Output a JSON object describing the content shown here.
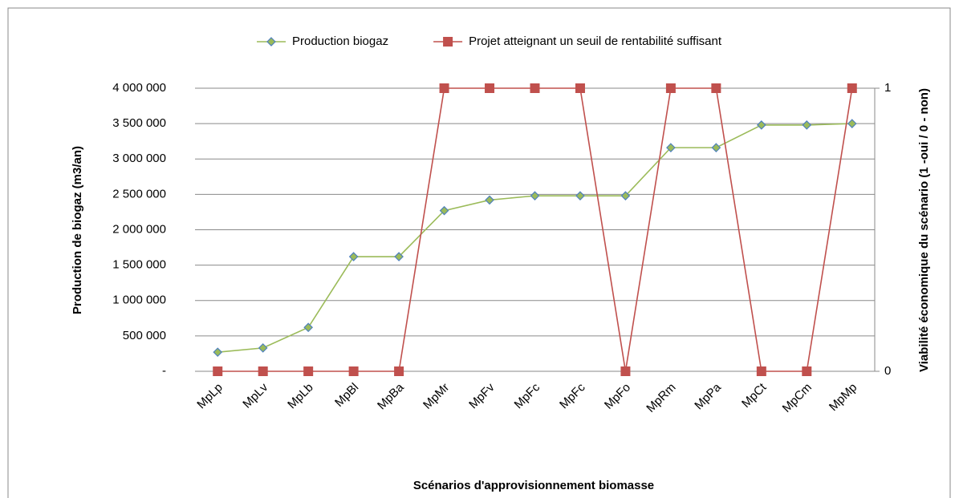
{
  "chart_data": {
    "type": "line",
    "categories": [
      "MpLp",
      "MpLv",
      "MpLb",
      "MpBl",
      "MpBa",
      "MpMr",
      "MpFv",
      "MpFc",
      "MpFc",
      "MpFo",
      "MpRm",
      "MpPa",
      "MpCt",
      "MpCm",
      "MpMp"
    ],
    "series": [
      {
        "name": "Production biogaz",
        "color": "#9bbb59",
        "marker_edge": "#4f81bd",
        "marker": "diamond",
        "values": [
          270000,
          330000,
          620000,
          1620000,
          1620000,
          2270000,
          2420000,
          2480000,
          2480000,
          2480000,
          3160000,
          3160000,
          3480000,
          3480000,
          3500000
        ]
      },
      {
        "name": "Projet atteignant  un seuil de rentabilité suffisant",
        "color": "#c0504d",
        "marker": "square",
        "axis": "y2",
        "values": [
          0,
          0,
          0,
          0,
          0,
          1,
          1,
          1,
          1,
          0,
          1,
          1,
          0,
          0,
          1
        ]
      }
    ],
    "ylim": [
      0,
      4000000
    ],
    "yticks": [
      {
        "value": 0,
        "label": "-"
      },
      {
        "value": 500000,
        "label": "500 000"
      },
      {
        "value": 1000000,
        "label": "1 000 000"
      },
      {
        "value": 1500000,
        "label": "1 500 000"
      },
      {
        "value": 2000000,
        "label": "2 000 000"
      },
      {
        "value": 2500000,
        "label": "2 500 000"
      },
      {
        "value": 3000000,
        "label": "3 000 000"
      },
      {
        "value": 3500000,
        "label": "3 500 000"
      },
      {
        "value": 4000000,
        "label": "4 000 000"
      }
    ],
    "y2lim": [
      0,
      1
    ],
    "y2ticks": [
      0,
      1
    ],
    "y_label": "Production de biogaz  (m3/an)",
    "y2_label": "Viabilité économique du scénario  (1 -oui / 0 - non)",
    "x_label": "Scénarios d'approvisionnement  biomasse",
    "grid": true,
    "legend": "top"
  }
}
